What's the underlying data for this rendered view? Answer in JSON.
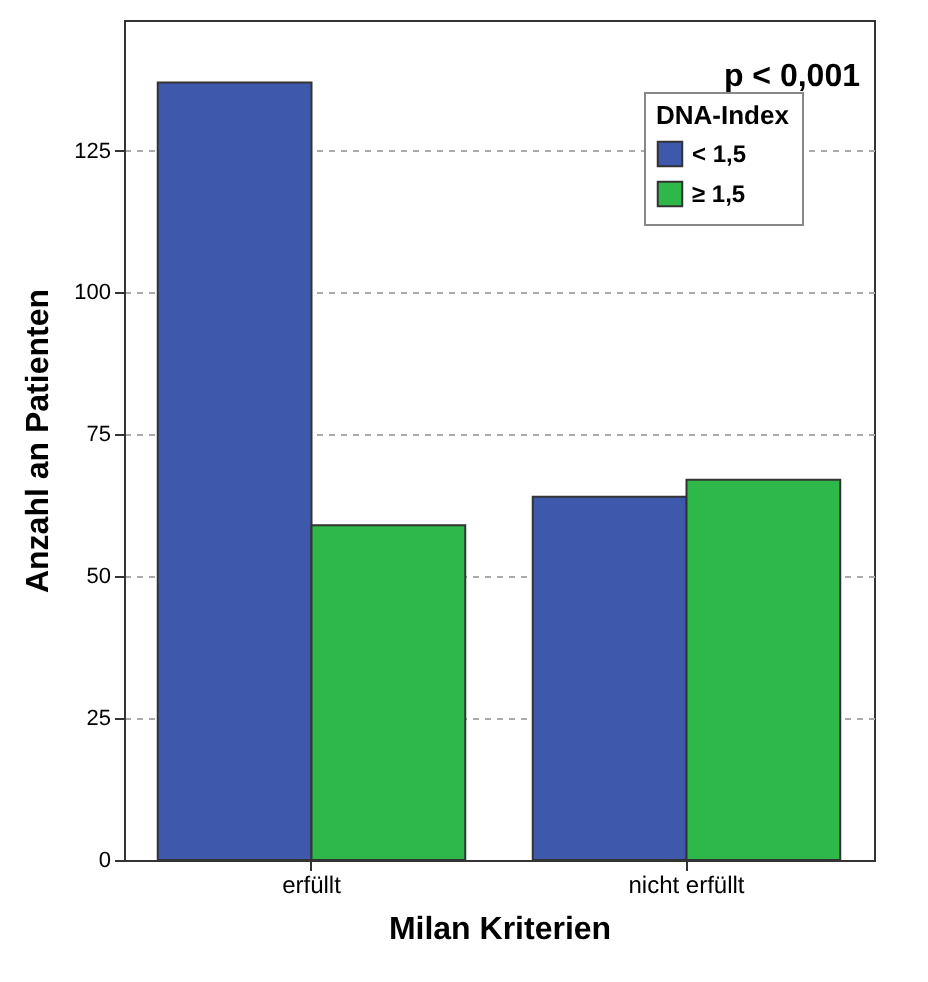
{
  "chart_data": {
    "type": "bar",
    "xlabel": "Milan Kriterien",
    "ylabel": "Anzahl an Patienten",
    "legend_title": "DNA-Index",
    "categories": [
      "erfüllt",
      "nicht erfüllt"
    ],
    "series": [
      {
        "name": "< 1,5",
        "color": "#3e58ac",
        "values": [
          137,
          64
        ]
      },
      {
        "name": "≥ 1,5",
        "color": "#2fb84a",
        "values": [
          59,
          67
        ]
      }
    ],
    "ylim": [
      0,
      148
    ],
    "yticks": [
      0,
      25,
      50,
      75,
      100,
      125
    ],
    "grid": "y",
    "legend": "top right",
    "annotations": [
      "p < 0,001"
    ]
  }
}
